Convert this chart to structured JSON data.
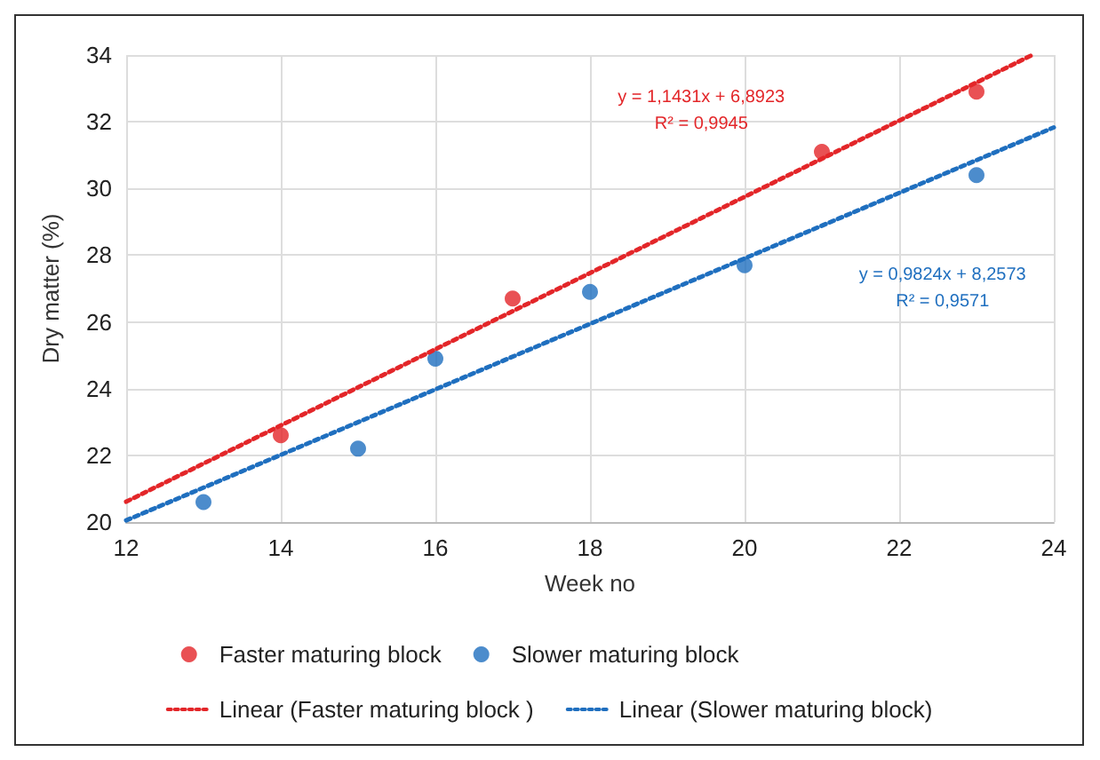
{
  "chart_data": {
    "type": "scatter",
    "xlabel": "Week no",
    "ylabel": "Dry matter (%)",
    "xlim": [
      12,
      24
    ],
    "xticks": [
      12,
      14,
      16,
      18,
      20,
      22,
      24
    ],
    "ylim": [
      20,
      34
    ],
    "yticks": [
      20,
      22,
      24,
      26,
      28,
      30,
      32,
      34
    ],
    "grid": true,
    "legend": "bottom",
    "series": [
      {
        "name": "Faster maturing block",
        "color": "#e32629",
        "marker": "circle",
        "x": [
          14,
          17,
          21,
          23
        ],
        "values": [
          22.6,
          26.7,
          31.1,
          32.9
        ]
      },
      {
        "name": "Slower maturing block",
        "color": "#1f6fbf",
        "marker": "circle",
        "x": [
          13,
          15,
          16,
          18,
          20,
          23
        ],
        "values": [
          20.6,
          22.2,
          24.9,
          26.9,
          27.7,
          30.4
        ]
      },
      {
        "name": "Linear (Faster maturing block )",
        "type": "line",
        "line_style": "dotted",
        "color": "#e32629",
        "x": [
          12,
          23.72
        ],
        "values": [
          20.61,
          34
        ]
      },
      {
        "name": "Linear (Slower maturing block)",
        "type": "line",
        "line_style": "dotted",
        "color": "#1f6fbf",
        "x": [
          12,
          24
        ],
        "values": [
          20.05,
          31.83
        ]
      }
    ],
    "annotations": [
      "y = 1,1431x + 6,8923\nR² = 0,9945",
      "y = 0,9824x + 8,2573\nR² = 0,9571"
    ]
  }
}
